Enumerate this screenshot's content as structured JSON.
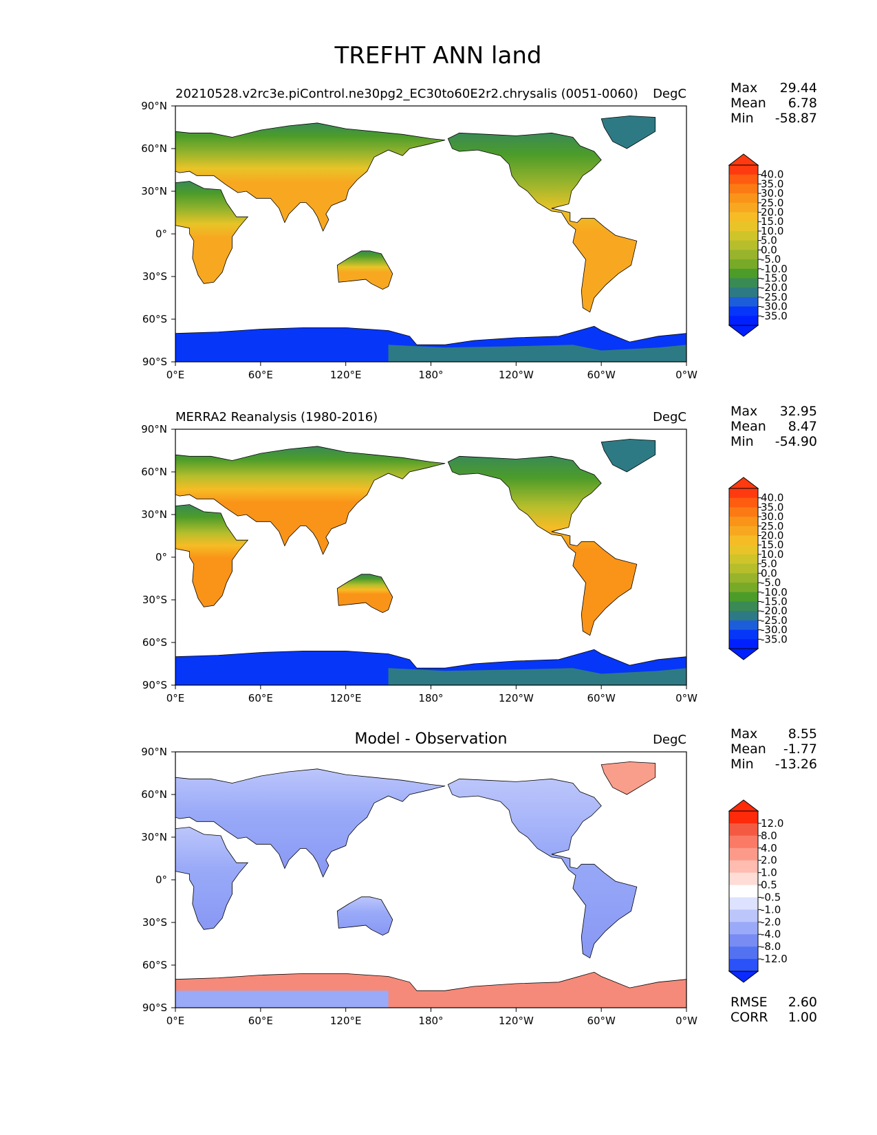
{
  "figure": {
    "title": "TREFHT ANN land"
  },
  "chart_data": [
    {
      "type": "heatmap",
      "title": "20210528.v2rc3e.piControl.ne30pg2_EC30to60E2r2.chrysalis (0051-0060)",
      "units": "DegC",
      "stats": [
        {
          "label": "Max",
          "value": "29.44"
        },
        {
          "label": "Mean",
          "value": "6.78"
        },
        {
          "label": "Min",
          "value": "-58.87"
        }
      ],
      "colorbar": {
        "labels": [
          "40.0",
          "35.0",
          "30.0",
          "25.0",
          "20.0",
          "15.0",
          "10.0",
          "5.0",
          "0.0",
          "-5.0",
          "-10.0",
          "-15.0",
          "-20.0",
          "-25.0",
          "-30.0",
          "-35.0"
        ],
        "colors": [
          "#ff3a10",
          "#fe5c10",
          "#fc7a14",
          "#fa9418",
          "#f8a820",
          "#f6bc26",
          "#e8c428",
          "#cfc42a",
          "#b6be2c",
          "#98b42c",
          "#78aa28",
          "#4c9c2a",
          "#3a8a56",
          "#2e7a84",
          "#1c5eda",
          "#0636f8",
          "#0020ff",
          "#ff2a0a"
        ]
      },
      "xlabel": "",
      "ylabel": ""
    },
    {
      "type": "heatmap",
      "title": "MERRA2 Reanalysis (1980-2016)",
      "units": "DegC",
      "stats": [
        {
          "label": "Max",
          "value": "32.95"
        },
        {
          "label": "Mean",
          "value": "8.47"
        },
        {
          "label": "Min",
          "value": "-54.90"
        }
      ],
      "colorbar": {
        "labels": [
          "40.0",
          "35.0",
          "30.0",
          "25.0",
          "20.0",
          "15.0",
          "10.0",
          "5.0",
          "0.0",
          "-5.0",
          "-10.0",
          "-15.0",
          "-20.0",
          "-25.0",
          "-30.0",
          "-35.0"
        ],
        "colors": [
          "#ff3a10",
          "#fe5c10",
          "#fc7a14",
          "#fa9418",
          "#f8a820",
          "#f6bc26",
          "#e8c428",
          "#cfc42a",
          "#b6be2c",
          "#98b42c",
          "#78aa28",
          "#4c9c2a",
          "#3a8a56",
          "#2e7a84",
          "#1c5eda",
          "#0636f8",
          "#0020ff",
          "#ff2a0a"
        ]
      },
      "xlabel": "",
      "ylabel": ""
    },
    {
      "type": "heatmap",
      "title": "Model - Observation",
      "units": "DegC",
      "stats": [
        {
          "label": "Max",
          "value": "8.55"
        },
        {
          "label": "Mean",
          "value": "-1.77"
        },
        {
          "label": "Min",
          "value": "-13.26"
        }
      ],
      "colorbar": {
        "labels": [
          "12.0",
          "8.0",
          "4.0",
          "2.0",
          "1.0",
          "0.5",
          "-0.5",
          "-1.0",
          "-2.0",
          "-4.0",
          "-8.0",
          "-12.0"
        ],
        "colors": [
          "#ff2a0a",
          "#f45a42",
          "#fa7a66",
          "#fc9a8a",
          "#ffbcb0",
          "#ffdcd6",
          "#ffffff",
          "#dde2ff",
          "#bcc6fb",
          "#9aaaf8",
          "#788cf4",
          "#5272f2",
          "#2a52f8",
          "#0a2aff"
        ]
      },
      "extra_stats": [
        {
          "label": "RMSE",
          "value": "2.60"
        },
        {
          "label": "CORR",
          "value": "1.00"
        }
      ],
      "xlabel": "",
      "ylabel": ""
    }
  ],
  "axes": {
    "lon_ticks": [
      "0°E",
      "60°E",
      "120°E",
      "180°",
      "120°W",
      "60°W",
      "0°W"
    ],
    "lat_ticks": [
      "90°N",
      "60°N",
      "30°N",
      "0°",
      "30°S",
      "60°S",
      "90°S"
    ],
    "lon_range": [
      0,
      360
    ],
    "lat_range": [
      -90,
      90
    ]
  }
}
